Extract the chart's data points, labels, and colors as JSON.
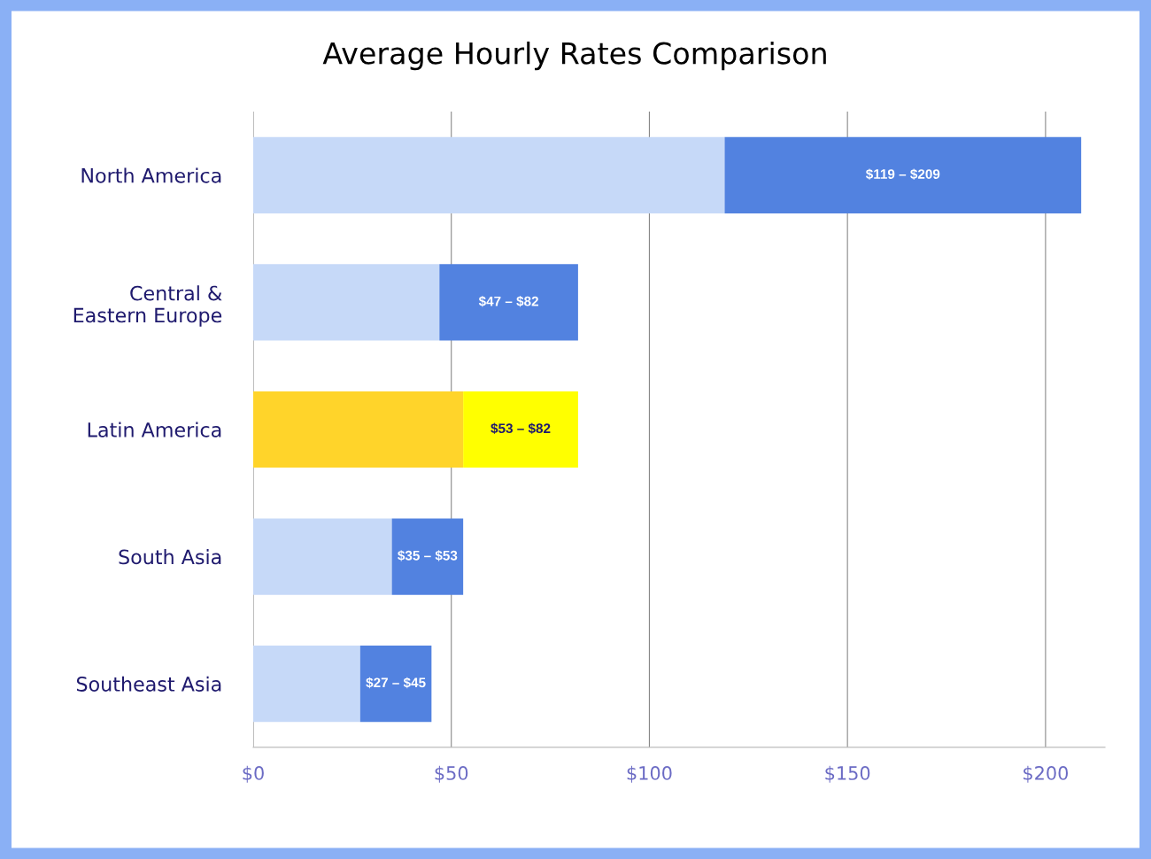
{
  "chart_data": {
    "type": "bar",
    "orientation": "horizontal",
    "stacked": true,
    "title": "Average Hourly Rates Comparison",
    "categories": [
      "North America",
      "Central &\nEastern Europe",
      "Latin America",
      "South Asia",
      "Southeast Asia"
    ],
    "series": [
      {
        "colors": [
          "#c6d9f8",
          "#c6d9f8",
          "#ffd42a",
          "#c6d9f8",
          "#c6d9f8"
        ],
        "values": [
          119,
          47,
          53,
          35,
          27
        ]
      },
      {
        "colors": [
          "#5282e0",
          "#5282e0",
          "#ffff00",
          "#5282e0",
          "#5282e0"
        ],
        "values": [
          90,
          35,
          29,
          18,
          18
        ]
      }
    ],
    "annotations": [
      "$119 – $209",
      "$47 – $82",
      "$53 – $82",
      "$35 – $53",
      "$27 – $45"
    ],
    "xlim": [
      0,
      215
    ],
    "xticks": [
      {
        "value": 0,
        "label": "$0"
      },
      {
        "value": 50,
        "label": "$50"
      },
      {
        "value": 100,
        "label": "$100"
      },
      {
        "value": 150,
        "label": "$150"
      },
      {
        "value": 200,
        "label": "$200"
      }
    ],
    "grid": "x",
    "legend": false
  }
}
